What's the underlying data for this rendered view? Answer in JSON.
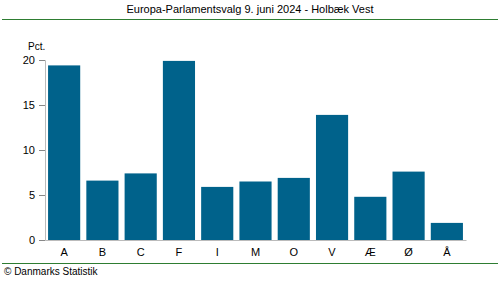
{
  "chart_data": {
    "type": "bar",
    "title": "Europa-Parlamentsvalg 9. juni 2024 - Holbæk Vest",
    "y_label": "Pct.",
    "source": "© Danmarks Statistik",
    "categories": [
      "A",
      "B",
      "C",
      "F",
      "I",
      "M",
      "O",
      "V",
      "Æ",
      "Ø",
      "Å"
    ],
    "values": [
      19.4,
      6.6,
      7.4,
      19.9,
      5.9,
      6.5,
      6.9,
      13.9,
      4.8,
      7.6,
      1.9
    ],
    "color": "#00628b",
    "ylim": [
      0,
      20
    ],
    "yticks": [
      0,
      5,
      10,
      15,
      20
    ],
    "grid": false
  }
}
